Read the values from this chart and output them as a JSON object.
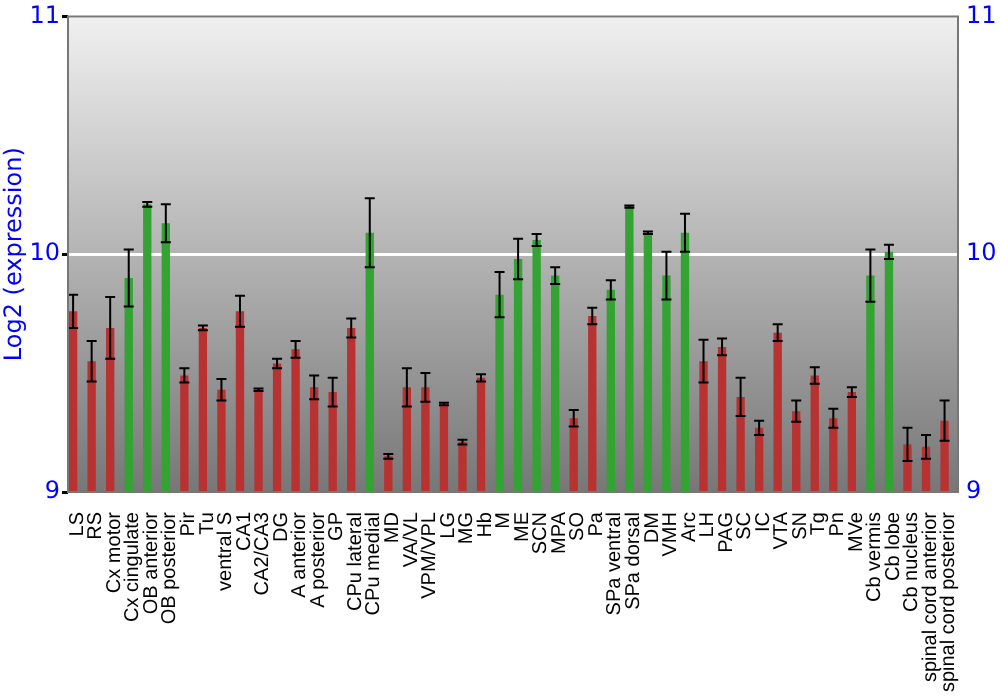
{
  "chart_data": {
    "type": "bar",
    "ylabel": "Log2 (expression)",
    "categories": [
      "LS",
      "RS",
      "Cx motor",
      "Cx cingulate",
      "OB anterior",
      "OB posterior",
      "Pir",
      "Tu",
      "ventral S",
      "CA1",
      "CA2/CA3",
      "DG",
      "A anterior",
      "A posterior",
      "GP",
      "CPu lateral",
      "CPu medial",
      "MD",
      "VA/VL",
      "VPM/VPL",
      "LG",
      "MG",
      "Hb",
      "M",
      "ME",
      "SCN",
      "MPA",
      "SO",
      "Pa",
      "SPa ventral",
      "SPa dorsal",
      "DM",
      "VMH",
      "Arc",
      "LH",
      "PAG",
      "SC",
      "IC",
      "VTA",
      "SN",
      "Tg",
      "Pn",
      "MVe",
      "Cb vermis",
      "Cb lobe",
      "Cb nucleus",
      "spinal cord anterior",
      "spinal cord posterior"
    ],
    "values": [
      9.76,
      9.55,
      9.69,
      9.9,
      10.21,
      10.13,
      9.49,
      9.69,
      9.43,
      9.76,
      9.43,
      9.54,
      9.6,
      9.44,
      9.42,
      9.69,
      10.09,
      9.15,
      9.44,
      9.44,
      9.37,
      9.21,
      9.48,
      9.83,
      9.98,
      10.06,
      9.91,
      9.31,
      9.74,
      9.85,
      10.2,
      10.09,
      9.91,
      10.09,
      9.55,
      9.61,
      9.4,
      9.27,
      9.67,
      9.34,
      9.49,
      9.31,
      9.42,
      9.91,
      10.01,
      9.2,
      9.19,
      9.3
    ],
    "errors": [
      0.07,
      0.085,
      0.13,
      0.12,
      0.01,
      0.08,
      0.03,
      0.01,
      0.045,
      0.065,
      0.005,
      0.02,
      0.035,
      0.05,
      0.06,
      0.04,
      0.145,
      0.01,
      0.08,
      0.06,
      0.005,
      0.01,
      0.015,
      0.095,
      0.085,
      0.025,
      0.035,
      0.035,
      0.035,
      0.04,
      0.005,
      0.005,
      0.1,
      0.08,
      0.09,
      0.035,
      0.08,
      0.03,
      0.035,
      0.045,
      0.035,
      0.04,
      0.02,
      0.11,
      0.03,
      0.07,
      0.05,
      0.085
    ],
    "colors": [
      "#b83232",
      "#b83232",
      "#b83232",
      "#33a333",
      "#33a333",
      "#33a333",
      "#b83232",
      "#b83232",
      "#b83232",
      "#b83232",
      "#b83232",
      "#b83232",
      "#b83232",
      "#b83232",
      "#b83232",
      "#b83232",
      "#33a333",
      "#b83232",
      "#b83232",
      "#b83232",
      "#b83232",
      "#b83232",
      "#b83232",
      "#33a333",
      "#33a333",
      "#33a333",
      "#33a333",
      "#b83232",
      "#b83232",
      "#33a333",
      "#33a333",
      "#33a333",
      "#33a333",
      "#33a333",
      "#b83232",
      "#b83232",
      "#b83232",
      "#b83232",
      "#b83232",
      "#b83232",
      "#b83232",
      "#b83232",
      "#b83232",
      "#33a333",
      "#33a333",
      "#b83232",
      "#b83232",
      "#b83232"
    ],
    "ylim": [
      9,
      11
    ],
    "yticks": [
      9,
      10,
      11
    ],
    "y2lim": [
      9,
      11
    ],
    "y2ticks": [
      9,
      10,
      11
    ],
    "grid": "y",
    "legend": false
  }
}
